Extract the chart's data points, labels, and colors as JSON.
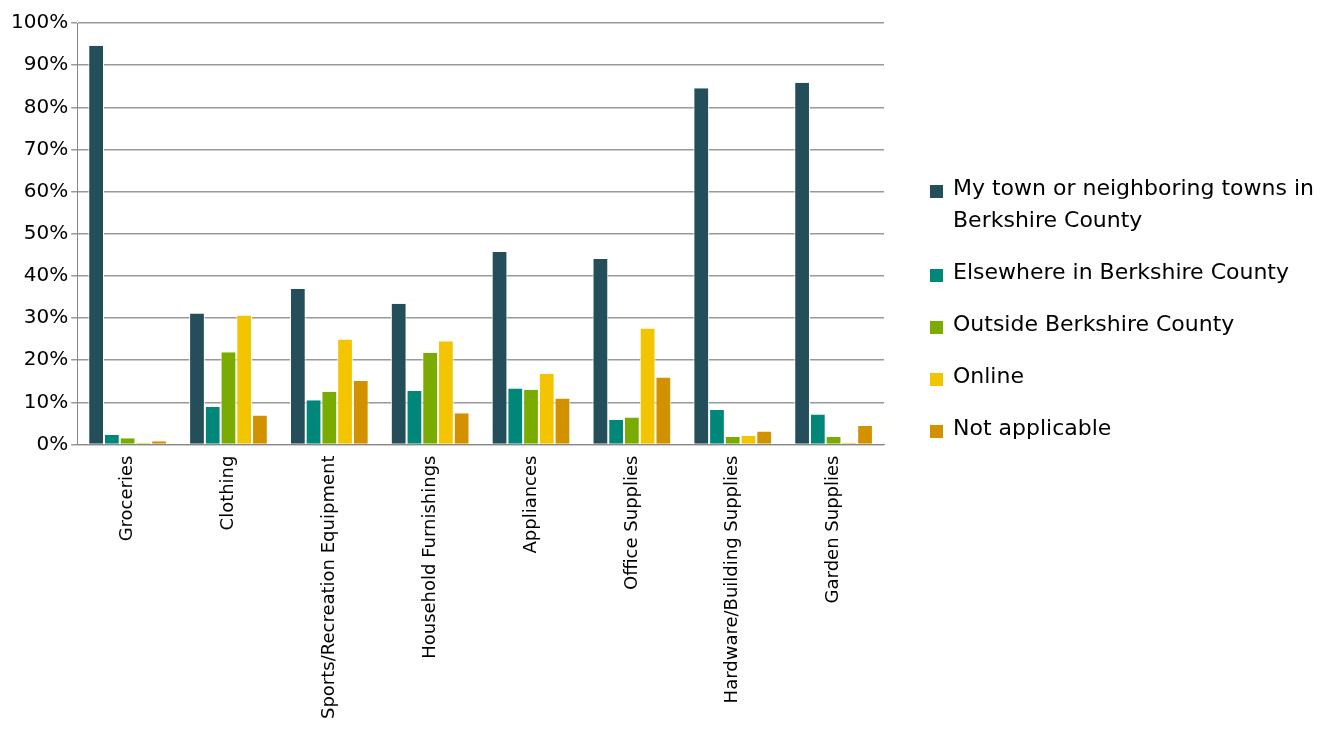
{
  "chart_data": {
    "type": "bar",
    "categories": [
      "Groceries",
      "Clothing",
      "Sports/Recreation Equipment",
      "Household Furnishings",
      "Appliances",
      "Office Supplies",
      "Hardware/Building Supplies",
      "Garden Supplies"
    ],
    "series": [
      {
        "name": "My town or neighboring towns in Berkshire County",
        "color": "#254e5b",
        "values": [
          94.6,
          31.1,
          36.9,
          33.4,
          45.7,
          44.0,
          84.5,
          85.8
        ]
      },
      {
        "name": "Elsewhere in Berkshire County",
        "color": "#00877a",
        "values": [
          2.3,
          8.9,
          10.5,
          12.7,
          13.3,
          5.9,
          8.2,
          7.1
        ]
      },
      {
        "name": "Outside Berkshire County",
        "color": "#7aab00",
        "values": [
          1.5,
          21.9,
          12.5,
          21.7,
          13.0,
          6.4,
          1.8,
          1.8
        ]
      },
      {
        "name": "Online",
        "color": "#f2c500",
        "values": [
          0.4,
          30.6,
          24.9,
          24.5,
          16.8,
          27.5,
          2.0,
          0.4
        ]
      },
      {
        "name": "Not applicable",
        "color": "#d29200",
        "values": [
          0.8,
          6.9,
          15.1,
          7.4,
          10.9,
          15.9,
          3.1,
          4.4
        ]
      }
    ],
    "ylim": [
      0,
      100
    ],
    "yticks": [
      {
        "value": 0,
        "label": "0%"
      },
      {
        "value": 10,
        "label": "10%"
      },
      {
        "value": 20,
        "label": "20%"
      },
      {
        "value": 30,
        "label": "30%"
      },
      {
        "value": 40,
        "label": "40%"
      },
      {
        "value": 50,
        "label": "50%"
      },
      {
        "value": 60,
        "label": "60%"
      },
      {
        "value": 70,
        "label": "70%"
      },
      {
        "value": 80,
        "label": "80%"
      },
      {
        "value": 90,
        "label": "90%"
      },
      {
        "value": 100,
        "label": "100%"
      }
    ],
    "grid": "y",
    "legend": "right"
  }
}
